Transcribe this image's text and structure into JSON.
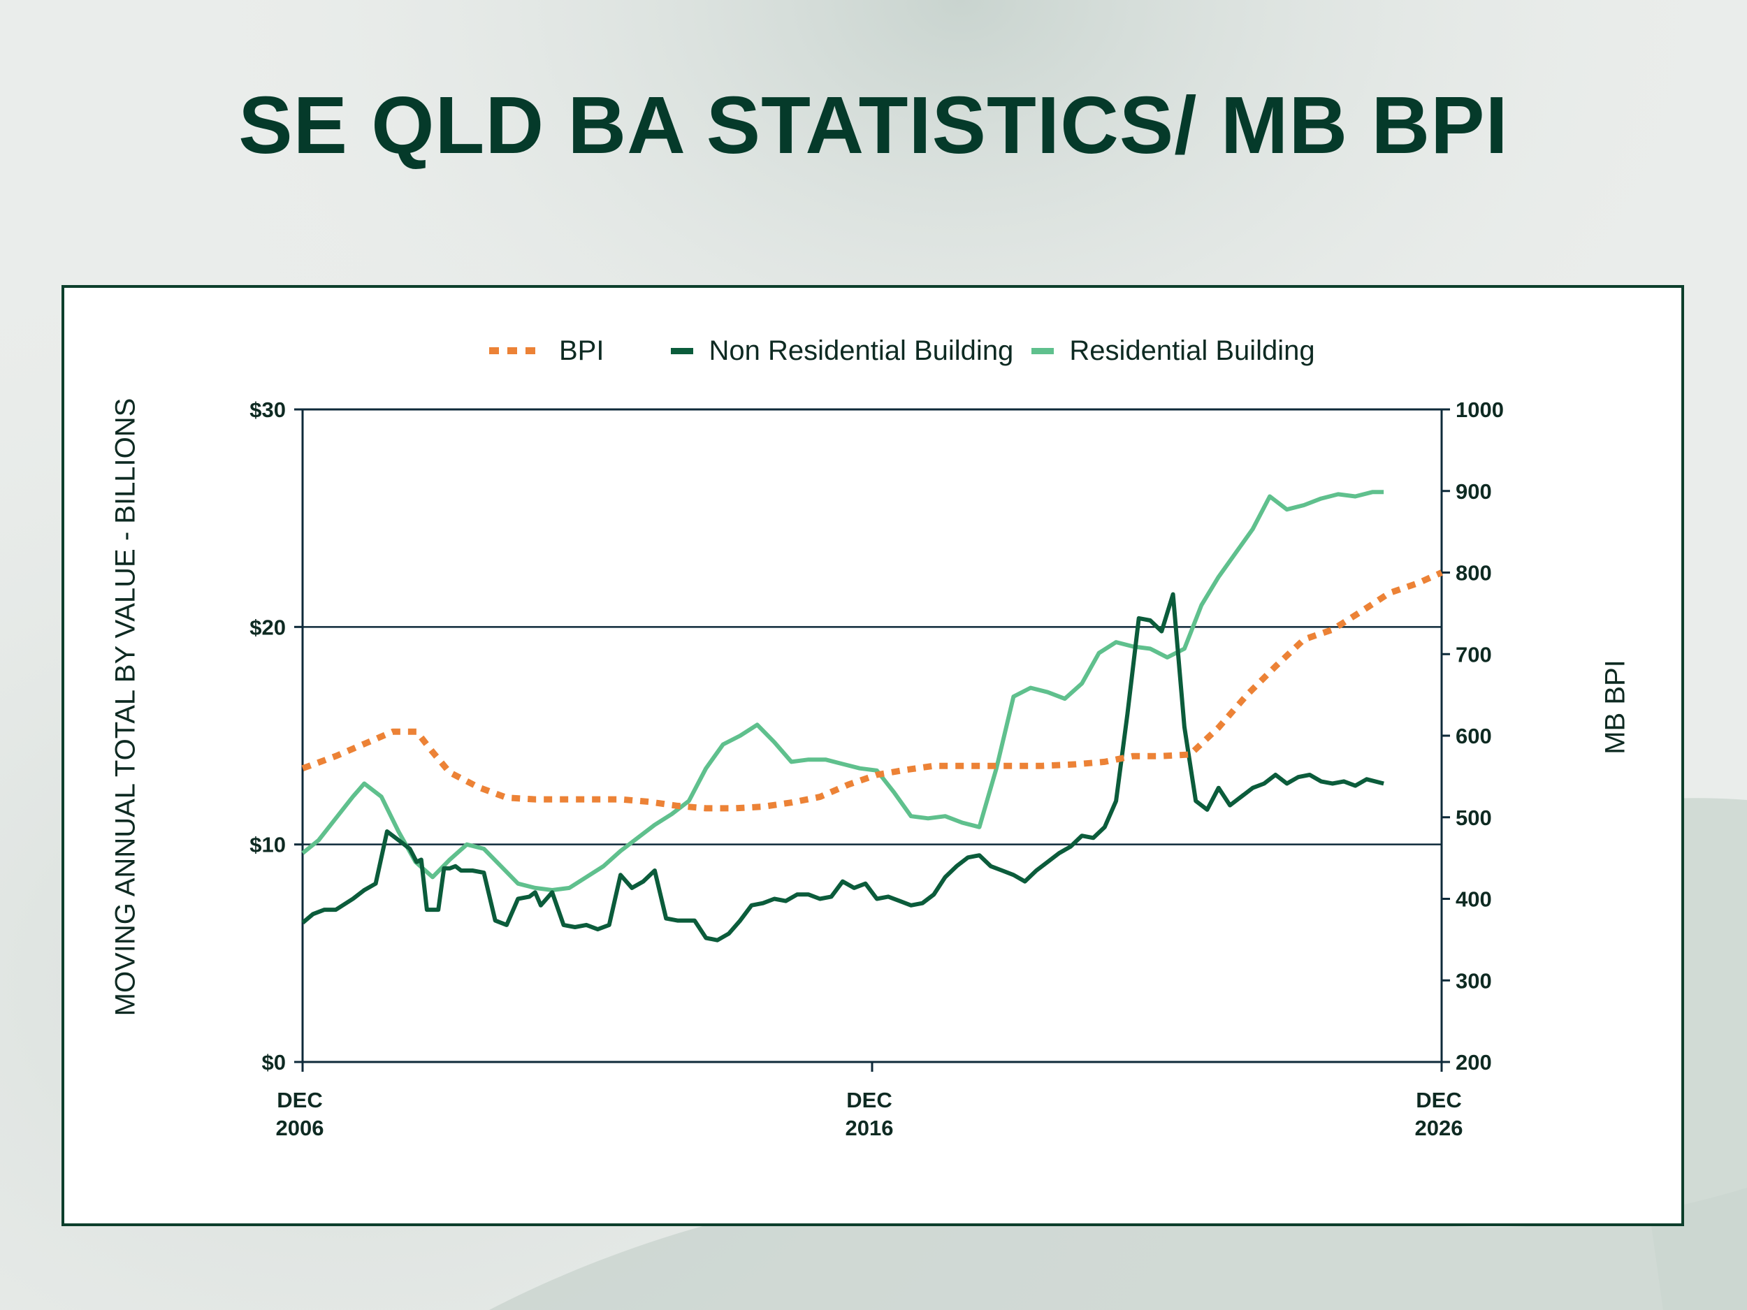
{
  "title": "SE QLD BA STATISTICS/ MB BPI",
  "colors": {
    "title": "#053a2a",
    "bpi": "#ec8236",
    "non_residential": "#0b5c3b",
    "residential": "#5fc08d",
    "frame": "#0d3f2c"
  },
  "legend": {
    "bpi": "BPI",
    "non_residential": "Non Residential Building",
    "residential": "Residential Building"
  },
  "chart_data": {
    "type": "line",
    "title": "",
    "xlabel": "",
    "ylabel": "MOVING ANNUAL TOTAL BY VALUE - BILLIONS",
    "y2label": "MB BPI",
    "xlim": [
      2006.917,
      2026.917
    ],
    "ylim": [
      0,
      30
    ],
    "y2lim": [
      200,
      1000
    ],
    "yticks": [
      "$0",
      "$10",
      "$20",
      "$30"
    ],
    "y2ticks": [
      "200",
      "300",
      "400",
      "500",
      "600",
      "700",
      "800",
      "900",
      "1000"
    ],
    "xticks": [
      {
        "x": 2006.917,
        "line1": "DEC",
        "line2": "2006"
      },
      {
        "x": 2016.917,
        "line1": "DEC",
        "line2": "2016"
      },
      {
        "x": 2026.917,
        "line1": "DEC",
        "line2": "2026"
      }
    ],
    "gridlines_y": [
      10,
      20
    ],
    "series": [
      {
        "name": "Non Residential Building",
        "axis": "left",
        "x": [
          2006.92,
          2007.1,
          2007.3,
          2007.5,
          2007.8,
          2008.0,
          2008.2,
          2008.4,
          2008.6,
          2008.8,
          2008.92,
          2009.0,
          2009.1,
          2009.3,
          2009.4,
          2009.5,
          2009.6,
          2009.7,
          2009.9,
          2010.1,
          2010.3,
          2010.5,
          2010.7,
          2010.9,
          2011.0,
          2011.1,
          2011.3,
          2011.5,
          2011.7,
          2011.9,
          2012.1,
          2012.3,
          2012.5,
          2012.7,
          2012.9,
          2013.1,
          2013.3,
          2013.5,
          2013.8,
          2014.0,
          2014.2,
          2014.4,
          2014.6,
          2014.8,
          2015.0,
          2015.2,
          2015.4,
          2015.6,
          2015.8,
          2016.0,
          2016.2,
          2016.4,
          2016.6,
          2016.8,
          2017.0,
          2017.2,
          2017.4,
          2017.6,
          2017.8,
          2018.0,
          2018.2,
          2018.4,
          2018.6,
          2018.8,
          2019.0,
          2019.2,
          2019.4,
          2019.6,
          2019.8,
          2020.0,
          2020.2,
          2020.4,
          2020.6,
          2020.8,
          2021.0,
          2021.2,
          2021.4,
          2021.6,
          2021.8,
          2022.0,
          2022.2,
          2022.4,
          2022.6,
          2022.8,
          2023.0,
          2023.2,
          2023.4,
          2023.6,
          2023.8,
          2024.0,
          2024.2,
          2024.4,
          2024.6,
          2024.8,
          2025.0,
          2025.2,
          2025.4,
          2025.6,
          2025.9
        ],
        "values": [
          6.4,
          6.8,
          7.0,
          7.0,
          7.5,
          7.9,
          8.2,
          10.6,
          10.2,
          9.8,
          9.2,
          9.3,
          7.0,
          7.0,
          8.9,
          8.9,
          9.0,
          8.8,
          8.8,
          8.7,
          6.5,
          6.3,
          7.5,
          7.6,
          7.8,
          7.2,
          7.8,
          6.3,
          6.2,
          6.3,
          6.1,
          6.3,
          8.6,
          8.0,
          8.3,
          8.8,
          6.6,
          6.5,
          6.5,
          5.7,
          5.6,
          5.9,
          6.5,
          7.2,
          7.3,
          7.5,
          7.4,
          7.7,
          7.7,
          7.5,
          7.6,
          8.3,
          8.0,
          8.2,
          7.5,
          7.6,
          7.4,
          7.2,
          7.3,
          7.7,
          8.5,
          9.0,
          9.4,
          9.5,
          9.0,
          8.8,
          8.6,
          8.3,
          8.8,
          9.2,
          9.6,
          9.9,
          10.4,
          10.3,
          10.8,
          12.0,
          16.0,
          20.4,
          20.3,
          19.8,
          21.5,
          15.4,
          12.0,
          11.6,
          12.6,
          11.8,
          12.2,
          12.6,
          12.8,
          13.2,
          12.8,
          13.1,
          13.2,
          12.9,
          12.8,
          12.9,
          12.7,
          13.0,
          12.8
        ]
      },
      {
        "name": "Residential Building",
        "axis": "left",
        "x": [
          2006.92,
          2007.2,
          2007.5,
          2007.8,
          2008.0,
          2008.3,
          2008.6,
          2008.9,
          2009.2,
          2009.5,
          2009.8,
          2010.1,
          2010.4,
          2010.7,
          2011.0,
          2011.3,
          2011.6,
          2011.9,
          2012.2,
          2012.5,
          2012.8,
          2013.1,
          2013.4,
          2013.7,
          2014.0,
          2014.3,
          2014.6,
          2014.9,
          2015.2,
          2015.5,
          2015.8,
          2016.1,
          2016.4,
          2016.7,
          2017.0,
          2017.3,
          2017.6,
          2017.9,
          2018.2,
          2018.5,
          2018.8,
          2019.1,
          2019.4,
          2019.7,
          2020.0,
          2020.3,
          2020.6,
          2020.9,
          2021.2,
          2021.5,
          2021.8,
          2022.1,
          2022.4,
          2022.7,
          2023.0,
          2023.3,
          2023.6,
          2023.9,
          2024.2,
          2024.5,
          2024.8,
          2025.1,
          2025.4,
          2025.7,
          2025.9
        ],
        "values": [
          9.6,
          10.2,
          11.2,
          12.2,
          12.8,
          12.2,
          10.6,
          9.2,
          8.5,
          9.3,
          10.0,
          9.8,
          9.0,
          8.2,
          8.0,
          7.9,
          8.0,
          8.5,
          9.0,
          9.7,
          10.3,
          10.9,
          11.4,
          12.0,
          13.5,
          14.6,
          15.0,
          15.5,
          14.7,
          13.8,
          13.9,
          13.9,
          13.7,
          13.5,
          13.4,
          12.4,
          11.3,
          11.2,
          11.3,
          11.0,
          10.8,
          13.5,
          16.8,
          17.2,
          17.0,
          16.7,
          17.4,
          18.8,
          19.3,
          19.1,
          19.0,
          18.6,
          19.0,
          21.0,
          22.3,
          23.4,
          24.5,
          26.0,
          25.4,
          25.6,
          25.9,
          26.1,
          26.0,
          26.2,
          26.2
        ]
      },
      {
        "name": "BPI",
        "axis": "right",
        "x": [
          2006.92,
          2007.5,
          2008.0,
          2008.5,
          2008.92,
          2009.2,
          2009.5,
          2010.0,
          2010.5,
          2011.0,
          2011.5,
          2012.0,
          2012.5,
          2013.0,
          2013.5,
          2014.0,
          2014.5,
          2015.0,
          2015.5,
          2016.0,
          2016.5,
          2017.0,
          2017.5,
          2018.0,
          2018.5,
          2019.0,
          2019.5,
          2019.9,
          2020.5,
          2021.0,
          2021.5,
          2022.0,
          2022.5,
          2023.0,
          2023.5,
          2024.0,
          2024.5,
          2025.0,
          2025.5,
          2026.0,
          2026.5,
          2026.917
        ],
        "values": [
          560,
          575,
          590,
          605,
          605,
          580,
          555,
          537,
          524,
          522,
          522,
          522,
          522,
          519,
          514,
          511,
          511,
          513,
          518,
          525,
          540,
          552,
          558,
          563,
          563,
          563,
          563,
          563,
          565,
          568,
          575,
          575,
          577,
          610,
          650,
          685,
          718,
          730,
          752,
          775,
          787,
          800
        ]
      }
    ]
  }
}
